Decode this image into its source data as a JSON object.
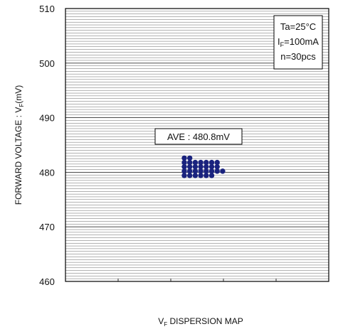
{
  "chart_data": {
    "type": "scatter",
    "title": "",
    "xlabel": {
      "main": "V",
      "sub": "F",
      "rest": " DISPERSION MAP"
    },
    "ylabel": {
      "main": "FORWARD VOLTAGE : V",
      "sub": "F",
      "rest": "(mV)"
    },
    "ylim": [
      460,
      510
    ],
    "yticks": [
      "510",
      "500",
      "490",
      "480",
      "470",
      "460"
    ],
    "grid": true,
    "conditions": [
      {
        "main": "Ta=25°C",
        "sub": "",
        "rest": ""
      },
      {
        "main": "I",
        "sub": "F",
        "rest": "=100mA"
      },
      {
        "main": "n=30pcs",
        "sub": "",
        "rest": ""
      }
    ],
    "annotation": "AVE : 480.8mV",
    "points": [
      {
        "x": 1,
        "y": 482.6
      },
      {
        "x": 2,
        "y": 482.6
      },
      {
        "x": 1,
        "y": 481.8
      },
      {
        "x": 2,
        "y": 481.8
      },
      {
        "x": 3,
        "y": 481.8
      },
      {
        "x": 4,
        "y": 481.8
      },
      {
        "x": 5,
        "y": 481.8
      },
      {
        "x": 6,
        "y": 481.8
      },
      {
        "x": 7,
        "y": 481.8
      },
      {
        "x": 1,
        "y": 481.0
      },
      {
        "x": 2,
        "y": 481.0
      },
      {
        "x": 3,
        "y": 481.0
      },
      {
        "x": 4,
        "y": 481.0
      },
      {
        "x": 5,
        "y": 481.0
      },
      {
        "x": 6,
        "y": 481.0
      },
      {
        "x": 7,
        "y": 481.0
      },
      {
        "x": 1,
        "y": 480.2
      },
      {
        "x": 2,
        "y": 480.2
      },
      {
        "x": 3,
        "y": 480.2
      },
      {
        "x": 4,
        "y": 480.2
      },
      {
        "x": 5,
        "y": 480.2
      },
      {
        "x": 6,
        "y": 480.2
      },
      {
        "x": 7,
        "y": 480.2
      },
      {
        "x": 8,
        "y": 480.2
      },
      {
        "x": 1,
        "y": 479.4
      },
      {
        "x": 2,
        "y": 479.4
      },
      {
        "x": 3,
        "y": 479.4
      },
      {
        "x": 4,
        "y": 479.4
      },
      {
        "x": 5,
        "y": 479.4
      },
      {
        "x": 6,
        "y": 479.4
      }
    ],
    "point_color": "#1a237e"
  }
}
